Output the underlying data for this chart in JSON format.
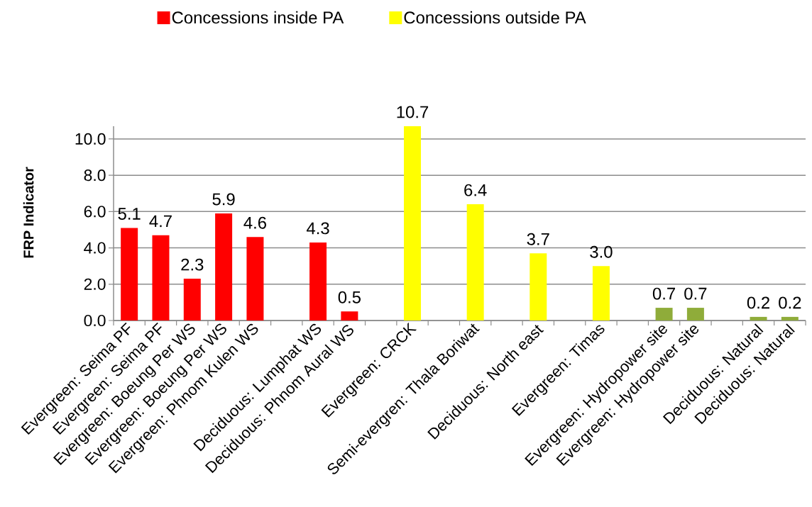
{
  "chart_data": {
    "type": "bar",
    "ylabel": "FRP Indicator",
    "categories": [
      "Evergreen: Seima PF",
      "Evergreen: Seima PF",
      "Evergreen: Boeung Per WS",
      "Evergreen: Boeung Per WS",
      "Evergreen: Phnom Kulen WS",
      null,
      "Deciduous: Lumphat WS",
      "Deciduous: Phnom Aural WS",
      null,
      "Evergreen: CRCK",
      null,
      "Semi-evergren: Thala Boriwat",
      null,
      "Deciduous: North east",
      null,
      "Evergreen: Timas",
      null,
      "Evergreen: Hydropower site",
      "Evergreen: Hydropower site",
      null,
      "Deciduous: Natural",
      "Deciduous: Natural"
    ],
    "series": [
      {
        "name": "Concessions inside PA",
        "color": "#ff0000",
        "values": [
          5.1,
          4.7,
          2.3,
          5.9,
          4.6,
          null,
          4.3,
          0.5,
          null,
          null,
          null,
          null,
          null,
          null,
          null,
          null,
          null,
          null,
          null,
          null,
          null,
          null
        ],
        "value_labels": [
          "5.1",
          "4.7",
          "2.3",
          "5.9",
          "4.6",
          null,
          "4.3",
          "0.5",
          null,
          null,
          null,
          null,
          null,
          null,
          null,
          null,
          null,
          null,
          null,
          null,
          null,
          null
        ]
      },
      {
        "name": "Concessions outside PA",
        "color": "#ffff00",
        "values": [
          null,
          null,
          null,
          null,
          null,
          null,
          null,
          null,
          null,
          10.7,
          null,
          6.4,
          null,
          3.7,
          null,
          3.0,
          null,
          null,
          null,
          null,
          null,
          null
        ],
        "value_labels": [
          null,
          null,
          null,
          null,
          null,
          null,
          null,
          null,
          null,
          "10.7",
          null,
          "6.4",
          null,
          "3.7",
          null,
          "3.0",
          null,
          null,
          null,
          null,
          null,
          null
        ]
      },
      {
        "color": "#8fac3a",
        "values": [
          null,
          null,
          null,
          null,
          null,
          null,
          null,
          null,
          null,
          null,
          null,
          null,
          null,
          null,
          null,
          null,
          null,
          0.7,
          0.7,
          null,
          0.2,
          0.2
        ],
        "value_labels": [
          null,
          null,
          null,
          null,
          null,
          null,
          null,
          null,
          null,
          null,
          null,
          null,
          null,
          null,
          null,
          null,
          null,
          "0.7",
          "0.7",
          null,
          "0.2",
          "0.2"
        ]
      }
    ],
    "ylim": [
      0,
      10.7
    ],
    "yticks": [
      {
        "value": 0,
        "label": "0.0"
      },
      {
        "value": 2,
        "label": "2.0"
      },
      {
        "value": 4,
        "label": "4.0"
      },
      {
        "value": 6,
        "label": "6.0"
      },
      {
        "value": 8,
        "label": "8.0"
      },
      {
        "value": 10,
        "label": "10.0"
      }
    ],
    "grid": "y",
    "legend": "top"
  }
}
